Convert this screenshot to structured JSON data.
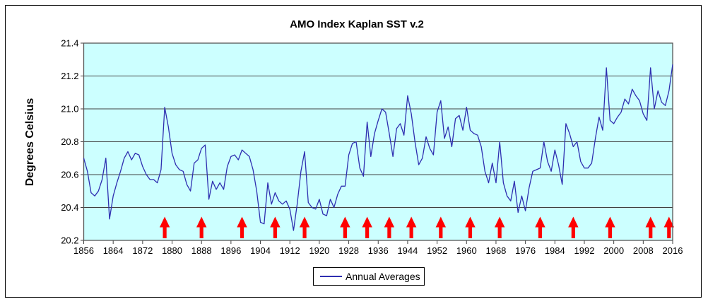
{
  "title": "AMO Index Kaplan SST v.2",
  "y_axis": {
    "label": "Degrees Celsius"
  },
  "legend": {
    "label": "Annual Averages"
  },
  "colors": {
    "plot_bg": "#CCFFFF",
    "line": "#2E2EB0",
    "gridline": "#404040",
    "plot_border": "#565656",
    "arrow": "#FF0000",
    "text": "#000000"
  },
  "chart_data": {
    "type": "line",
    "title": "AMO Index Kaplan SST v.2",
    "xlabel": "",
    "ylabel": "Degrees Celsius",
    "ylim": [
      20.2,
      21.4
    ],
    "y_ticks": [
      21.4,
      21.2,
      21.0,
      20.8,
      20.6,
      20.4,
      20.2
    ],
    "x_ticks": [
      1856,
      1864,
      1872,
      1880,
      1888,
      1896,
      1904,
      1912,
      1920,
      1928,
      1936,
      1944,
      1952,
      1960,
      1968,
      1976,
      1984,
      1992,
      2000,
      2008,
      2016
    ],
    "grid": true,
    "legend_position": "bottom-center",
    "series": [
      {
        "name": "Annual Averages",
        "x_start": 1856,
        "x_end": 2016,
        "values": [
          20.7,
          20.62,
          20.49,
          20.47,
          20.5,
          20.57,
          20.7,
          20.33,
          20.47,
          20.55,
          20.62,
          20.7,
          20.74,
          20.69,
          20.73,
          20.72,
          20.65,
          20.6,
          20.57,
          20.57,
          20.55,
          20.63,
          21.01,
          20.89,
          20.73,
          20.66,
          20.63,
          20.62,
          20.54,
          20.5,
          20.67,
          20.69,
          20.76,
          20.78,
          20.45,
          20.56,
          20.51,
          20.55,
          20.51,
          20.65,
          20.71,
          20.72,
          20.69,
          20.75,
          20.73,
          20.71,
          20.63,
          20.5,
          20.31,
          20.3,
          20.55,
          20.42,
          20.49,
          20.44,
          20.42,
          20.44,
          20.39,
          20.26,
          20.42,
          20.62,
          20.74,
          20.43,
          20.4,
          20.39,
          20.45,
          20.36,
          20.35,
          20.45,
          20.4,
          20.48,
          20.53,
          20.53,
          20.72,
          20.79,
          20.8,
          20.64,
          20.59,
          20.92,
          20.71,
          20.85,
          20.93,
          21.0,
          20.98,
          20.85,
          20.71,
          20.88,
          20.91,
          20.84,
          21.08,
          20.97,
          20.8,
          20.66,
          20.7,
          20.83,
          20.76,
          20.72,
          20.98,
          21.05,
          20.82,
          20.89,
          20.77,
          20.94,
          20.96,
          20.87,
          21.01,
          20.87,
          20.85,
          20.84,
          20.77,
          20.62,
          20.55,
          20.67,
          20.55,
          20.8,
          20.55,
          20.47,
          20.44,
          20.56,
          20.37,
          20.47,
          20.38,
          20.52,
          20.62,
          20.63,
          20.64,
          20.8,
          20.68,
          20.62,
          20.75,
          20.66,
          20.54,
          20.91,
          20.85,
          20.77,
          20.8,
          20.68,
          20.64,
          20.64,
          20.67,
          20.82,
          20.95,
          20.87,
          21.25,
          20.93,
          20.91,
          20.95,
          20.98,
          21.06,
          21.03,
          21.12,
          21.08,
          21.05,
          20.97,
          20.93,
          21.25,
          21.0,
          21.11,
          21.04,
          21.02,
          21.11,
          21.27
        ]
      }
    ],
    "annotations": {
      "red_arrow_years": [
        1878,
        1888,
        1899,
        1908,
        1916,
        1927,
        1933,
        1939,
        1945,
        1953,
        1961,
        1969,
        1980,
        1989,
        1999,
        2010,
        2015
      ]
    }
  }
}
